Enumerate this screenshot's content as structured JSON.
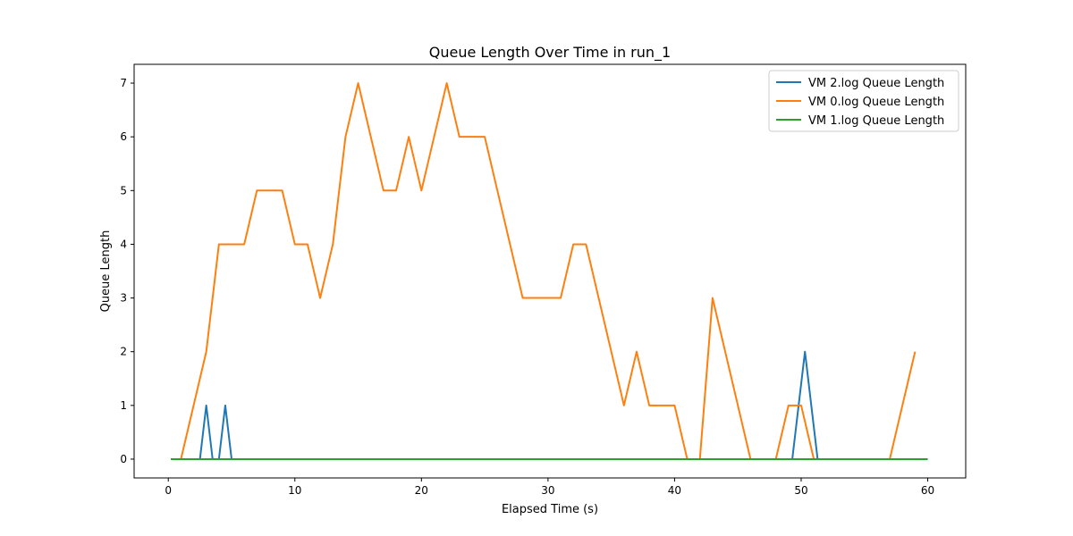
{
  "chart_data": {
    "type": "line",
    "title": "Queue Length Over Time in run_1",
    "xlabel": "Elapsed Time (s)",
    "ylabel": "Queue Length",
    "xlim": [
      -2.7,
      63
    ],
    "ylim": [
      -0.35,
      7.35
    ],
    "xticks": [
      0,
      10,
      20,
      30,
      40,
      50,
      60
    ],
    "yticks": [
      0,
      1,
      2,
      3,
      4,
      5,
      6,
      7
    ],
    "grid": false,
    "legend_position": "top-right",
    "series": [
      {
        "name": "VM 2.log Queue Length",
        "color": "#1f77b4",
        "x": [
          0.2,
          2.5,
          3.0,
          3.5,
          4.0,
          4.5,
          5.0,
          49.3,
          50.3,
          51.3,
          60.0
        ],
        "y": [
          0,
          0,
          1,
          0,
          0,
          1,
          0,
          0,
          2,
          0,
          0
        ]
      },
      {
        "name": "VM 0.log Queue Length",
        "color": "#ff7f0e",
        "x": [
          1.0,
          3.0,
          4.0,
          5.0,
          6.0,
          7.0,
          8.0,
          9.0,
          10.0,
          11.0,
          12.0,
          13.0,
          14.0,
          15.0,
          16.0,
          17.0,
          18.0,
          19.0,
          20.0,
          21.0,
          22.0,
          23.0,
          24.0,
          25.0,
          26.0,
          27.0,
          28.0,
          29.0,
          30.0,
          31.0,
          32.0,
          33.0,
          34.0,
          35.0,
          36.0,
          37.0,
          38.0,
          39.0,
          40.0,
          41.0,
          42.0,
          43.0,
          44.0,
          45.0,
          46.0,
          47.0,
          48.0,
          49.0,
          50.0,
          51.0,
          52.0,
          53.0,
          54.0,
          55.0,
          56.0,
          57.0,
          58.0,
          59.0
        ],
        "y": [
          0,
          2,
          4,
          4,
          4,
          5,
          5,
          5,
          4,
          4,
          3,
          4,
          6,
          7,
          6,
          5,
          5,
          6,
          5,
          6,
          7,
          6,
          6,
          6,
          5,
          4,
          3,
          3,
          3,
          3,
          4,
          4,
          3,
          2,
          1,
          2,
          1,
          1,
          1,
          0,
          0,
          3,
          2,
          1,
          0,
          0,
          0,
          1,
          1,
          0,
          0,
          0,
          0,
          0,
          0,
          0,
          1,
          2
        ]
      },
      {
        "name": "VM 1.log Queue Length",
        "color": "#2ca02c",
        "x": [
          0.2,
          60.0
        ],
        "y": [
          0,
          0
        ]
      }
    ]
  }
}
